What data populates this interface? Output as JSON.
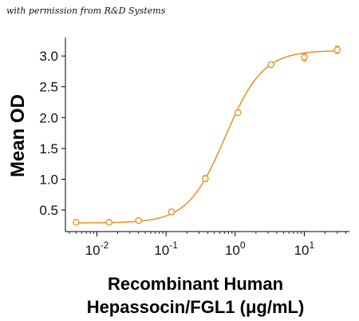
{
  "watermark": "with permission from R&D Systems",
  "chart_data": {
    "type": "scatter",
    "xlabel_line1": "Recombinant Human",
    "xlabel_line2": "Hepassocin/FGL1 (μg/mL)",
    "ylabel": "Mean OD",
    "xscale": "log",
    "xlim": [
      0.0035,
      45
    ],
    "ylim": [
      0.15,
      3.3
    ],
    "x_ticks": [
      {
        "value": 0.01,
        "base": "10",
        "exp": "-2"
      },
      {
        "value": 0.1,
        "base": "10",
        "exp": "-1"
      },
      {
        "value": 1,
        "base": "10",
        "exp": "0"
      },
      {
        "value": 10,
        "base": "10",
        "exp": "1"
      }
    ],
    "y_ticks": [
      "0.5",
      "1.0",
      "1.5",
      "2.0",
      "2.5",
      "3.0"
    ],
    "grid": false,
    "color": "#E8901E",
    "series": [
      {
        "x": [
          0.005,
          0.015,
          0.04,
          0.12,
          0.37,
          1.1,
          3.3,
          10,
          30
        ],
        "y": [
          0.3,
          0.3,
          0.33,
          0.47,
          1.01,
          2.08,
          2.86,
          2.98,
          3.1
        ],
        "err": [
          0.015,
          0.015,
          0.02,
          0.04,
          0.05,
          0.03,
          0.03,
          0.06,
          0.06
        ]
      }
    ],
    "fit": {
      "bottom": 0.29,
      "top": 3.09,
      "ec50": 0.72,
      "hill": 1.6
    }
  }
}
